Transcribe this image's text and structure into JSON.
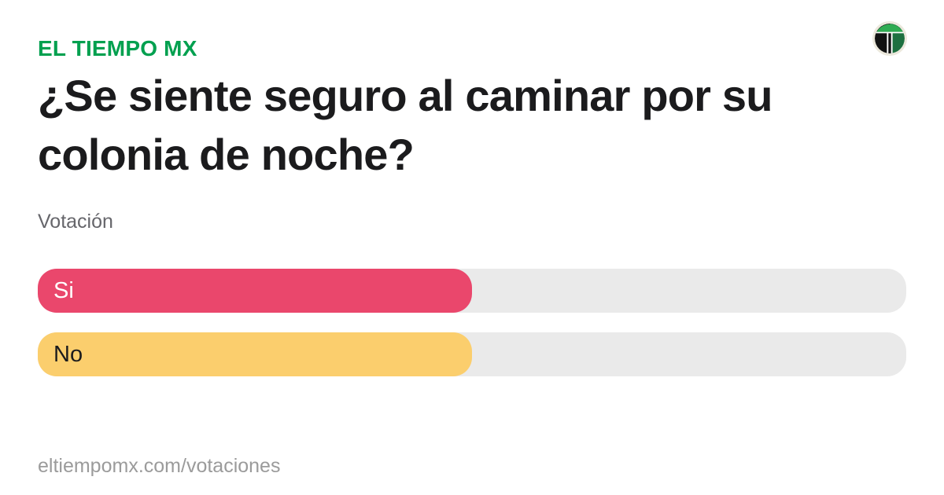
{
  "brand": {
    "label": "EL TIEMPO MX",
    "color": "#00A04F"
  },
  "logo": {
    "icon": "el-tiempo-t-logo",
    "ring_color": "#EBE8DC",
    "left_half_color": "#121212",
    "right_half_color": "#1D7040",
    "crossbar_color": "#2FAC52"
  },
  "headline": "¿Se siente seguro al caminar por su colonia de noche?",
  "section_label": "Votación",
  "poll": {
    "track_color": "#EAEAEA",
    "options": [
      {
        "label": "Si",
        "percent": 50,
        "fill_color": "#EA476C",
        "label_color": "#FFFFFF"
      },
      {
        "label": "No",
        "percent": 50,
        "fill_color": "#FBCE6D",
        "label_color": "#1B1B1D"
      }
    ]
  },
  "footer": {
    "url": "eltiempomx.com/votaciones"
  },
  "chart_data": {
    "type": "bar",
    "orientation": "horizontal",
    "title": "¿Se siente seguro al caminar por su colonia de noche?",
    "categories": [
      "Si",
      "No"
    ],
    "values": [
      50,
      50
    ],
    "xlim": [
      0,
      100
    ],
    "grid": false,
    "legend": false
  }
}
